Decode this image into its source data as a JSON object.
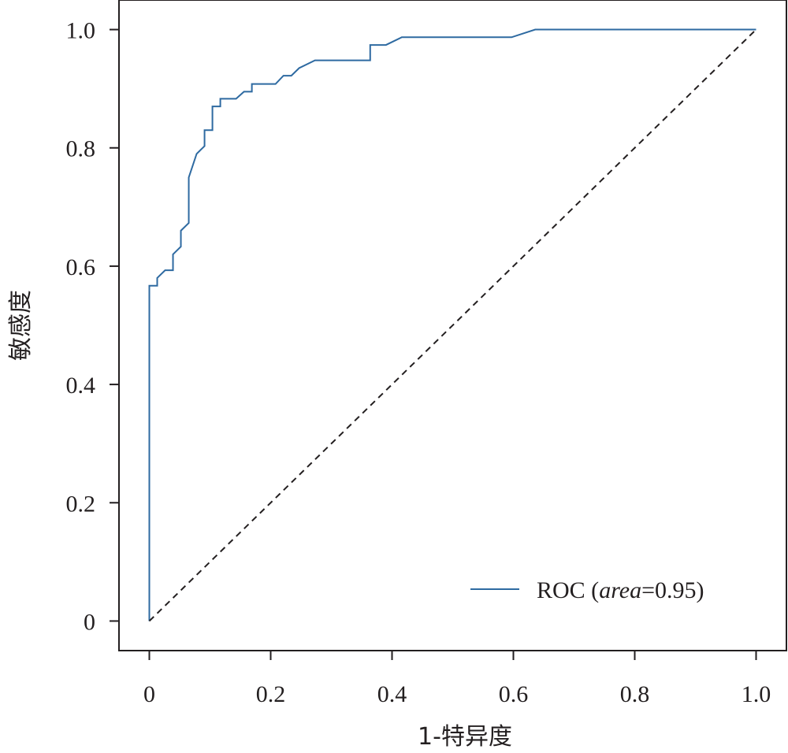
{
  "chart_data": {
    "type": "line",
    "xlabel": "1-特异度",
    "ylabel": "敏感度",
    "xlim": [
      -0.05,
      1.05
    ],
    "ylim": [
      -0.05,
      1.05
    ],
    "x_ticks": [
      {
        "value": 0,
        "label": "0"
      },
      {
        "value": 0.2,
        "label": "0.2"
      },
      {
        "value": 0.4,
        "label": "0.4"
      },
      {
        "value": 0.6,
        "label": "0.6"
      },
      {
        "value": 0.8,
        "label": "0.8"
      },
      {
        "value": 1.0,
        "label": "1.0"
      }
    ],
    "y_ticks": [
      {
        "value": 0,
        "label": "0"
      },
      {
        "value": 0.2,
        "label": "0.2"
      },
      {
        "value": 0.4,
        "label": "0.4"
      },
      {
        "value": 0.6,
        "label": "0.6"
      },
      {
        "value": 0.8,
        "label": "0.8"
      },
      {
        "value": 1.0,
        "label": "1.0"
      }
    ],
    "grid": false,
    "legend_position": "bottom-right",
    "legend": {
      "prefix": "ROC (",
      "italic": "area",
      "suffix": "=0.95)"
    },
    "series": [
      {
        "color": "#2e6aa1",
        "style": "solid",
        "x": [
          0,
          0,
          0.013,
          0.013,
          0.026,
          0.039,
          0.039,
          0.052,
          0.052,
          0.065,
          0.065,
          0.078,
          0.091,
          0.091,
          0.104,
          0.104,
          0.117,
          0.117,
          0.143,
          0.156,
          0.169,
          0.169,
          0.208,
          0.221,
          0.234,
          0.247,
          0.273,
          0.364,
          0.364,
          0.39,
          0.416,
          0.597,
          0.636,
          1.0
        ],
        "y": [
          0,
          0.567,
          0.567,
          0.58,
          0.593,
          0.593,
          0.62,
          0.633,
          0.66,
          0.673,
          0.75,
          0.79,
          0.803,
          0.83,
          0.83,
          0.87,
          0.87,
          0.883,
          0.883,
          0.895,
          0.895,
          0.908,
          0.908,
          0.922,
          0.922,
          0.935,
          0.948,
          0.948,
          0.974,
          0.974,
          0.987,
          0.987,
          1.0,
          1.0
        ]
      },
      {
        "color": "#231f20",
        "style": "dashed",
        "x": [
          0,
          1
        ],
        "y": [
          0,
          1
        ]
      }
    ]
  }
}
